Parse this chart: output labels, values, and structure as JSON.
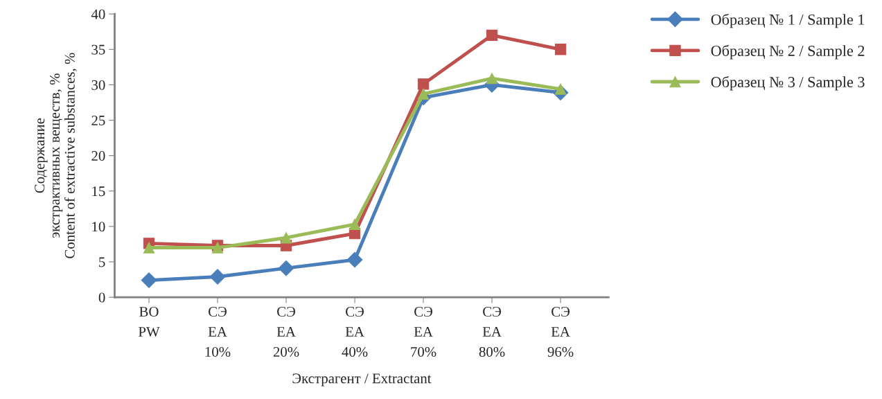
{
  "chart_data": {
    "type": "line",
    "xlabel": "Экстрагент / Extractant",
    "ylabel": "Содержание\nэкстрактивных веществ, %\nContent of extractive substances, %",
    "categories": [
      "ВО\nPW",
      "СЭ\nEA\n10%",
      "СЭ\nEA\n20%",
      "СЭ\nEA\n40%",
      "СЭ\nEA\n70%",
      "СЭ\nEA\n80%",
      "СЭ\nEA\n96%"
    ],
    "series": [
      {
        "name": "Образец № 1 / Sample 1",
        "color": "#4a7ebb",
        "marker": "diamond",
        "values": [
          2.4,
          2.9,
          4.1,
          5.3,
          28.2,
          30.0,
          28.9
        ]
      },
      {
        "name": "Образец № 2 / Sample 2",
        "color": "#c0504d",
        "marker": "square",
        "values": [
          7.6,
          7.3,
          7.3,
          9.0,
          30.1,
          37.0,
          35.0
        ]
      },
      {
        "name": "Образец № 3 / Sample 3",
        "color": "#9bbb59",
        "marker": "triangle",
        "values": [
          7.0,
          7.0,
          8.4,
          10.3,
          28.7,
          30.9,
          29.4
        ]
      }
    ],
    "ylim": [
      0,
      40
    ],
    "yticks": [
      0,
      5,
      10,
      15,
      20,
      25,
      30,
      35,
      40
    ],
    "grid": false,
    "legend": "top right",
    "line_style": "solid"
  }
}
